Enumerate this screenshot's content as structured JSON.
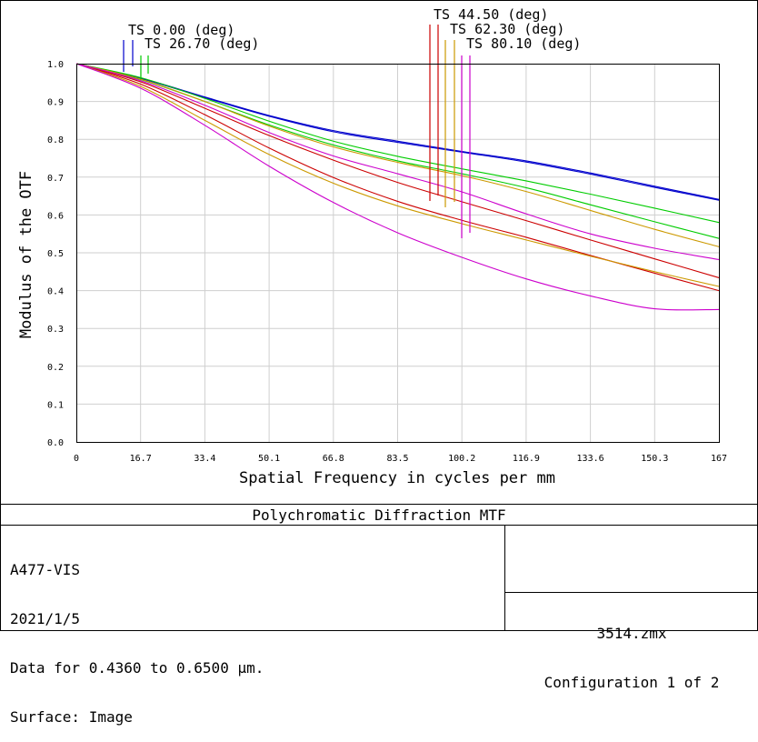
{
  "chart_data": {
    "type": "line",
    "title": "Polychromatic Diffraction MTF",
    "xlabel": "Spatial Frequency in cycles per mm",
    "ylabel": "Modulus of the OTF",
    "xlim": [
      0,
      167
    ],
    "ylim": [
      0,
      1
    ],
    "grid": true,
    "x_ticks": [
      "0",
      "16.7",
      "33.4",
      "50.1",
      "66.8",
      "83.5",
      "100.2",
      "116.9",
      "133.6",
      "150.3",
      "167"
    ],
    "y_ticks": [
      "0.0",
      "0.1",
      "0.2",
      "0.3",
      "0.4",
      "0.5",
      "0.6",
      "0.7",
      "0.8",
      "0.9",
      "1.0"
    ],
    "x": [
      0,
      16.7,
      33.4,
      50.1,
      66.8,
      83.5,
      100.2,
      116.9,
      133.6,
      150.3,
      167
    ],
    "legend": [
      {
        "label": "TS 0.00 (deg)",
        "colors": [
          "#0000cc",
          "#0000cc"
        ]
      },
      {
        "label": "TS 26.70 (deg)",
        "colors": [
          "#00cc00",
          "#00cc00"
        ]
      },
      {
        "label": "TS 44.50 (deg)",
        "colors": [
          "#cc0000",
          "#cc0000"
        ]
      },
      {
        "label": "TS 62.30 (deg)",
        "colors": [
          "#cc9900",
          "#cc9900"
        ]
      },
      {
        "label": "TS 80.10 (deg)",
        "colors": [
          "#cc00cc",
          "#cc00cc"
        ]
      }
    ],
    "series": [
      {
        "color": "#0000cc",
        "values": [
          1.0,
          0.962,
          0.912,
          0.863,
          0.823,
          0.795,
          0.768,
          0.743,
          0.711,
          0.676,
          0.641
        ]
      },
      {
        "color": "#0000cc",
        "values": [
          1.0,
          0.961,
          0.91,
          0.861,
          0.82,
          0.792,
          0.766,
          0.74,
          0.708,
          0.673,
          0.639
        ]
      },
      {
        "color": "#00cc00",
        "values": [
          1.0,
          0.963,
          0.908,
          0.848,
          0.795,
          0.755,
          0.722,
          0.69,
          0.655,
          0.618,
          0.58
        ]
      },
      {
        "color": "#00cc00",
        "values": [
          1.0,
          0.958,
          0.9,
          0.838,
          0.785,
          0.743,
          0.709,
          0.672,
          0.627,
          0.582,
          0.538
        ]
      },
      {
        "color": "#cc0000",
        "values": [
          1.0,
          0.952,
          0.882,
          0.81,
          0.745,
          0.686,
          0.635,
          0.585,
          0.534,
          0.484,
          0.434
        ]
      },
      {
        "color": "#cc0000",
        "values": [
          1.0,
          0.946,
          0.865,
          0.777,
          0.699,
          0.636,
          0.586,
          0.541,
          0.493,
          0.446,
          0.4
        ]
      },
      {
        "color": "#cc9900",
        "values": [
          1.0,
          0.959,
          0.9,
          0.835,
          0.78,
          0.739,
          0.704,
          0.662,
          0.612,
          0.562,
          0.516
        ]
      },
      {
        "color": "#cc9900",
        "values": [
          1.0,
          0.94,
          0.85,
          0.76,
          0.684,
          0.624,
          0.577,
          0.534,
          0.491,
          0.45,
          0.411
        ]
      },
      {
        "color": "#cc00cc",
        "values": [
          1.0,
          0.955,
          0.89,
          0.818,
          0.756,
          0.709,
          0.661,
          0.603,
          0.55,
          0.512,
          0.482
        ]
      },
      {
        "color": "#cc00cc",
        "values": [
          1.0,
          0.935,
          0.837,
          0.729,
          0.633,
          0.553,
          0.488,
          0.431,
          0.386,
          0.352,
          0.35
        ]
      }
    ]
  },
  "info": {
    "line1": "A477-VIS",
    "line2": "2021/1/5",
    "line3": "Data for 0.4360 to 0.6500 µm.",
    "line4": "Surface: Image"
  },
  "file": {
    "name": "3514.zmx",
    "config": "Configuration 1 of 2"
  }
}
